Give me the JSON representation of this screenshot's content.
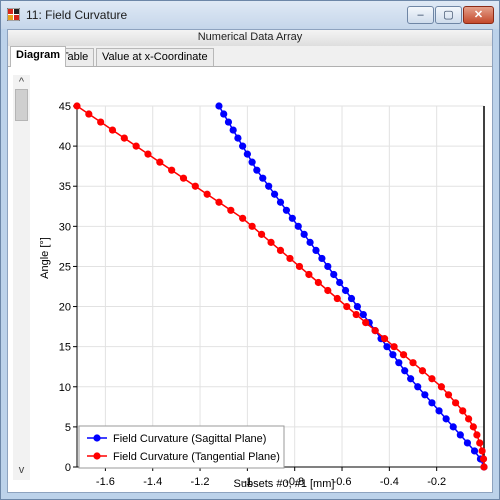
{
  "window": {
    "title": "11: Field Curvature",
    "min_glyph": "–",
    "max_glyph": "▢",
    "close_glyph": "✕"
  },
  "header": {
    "title": "Numerical Data Array"
  },
  "tabs": [
    {
      "label": "Diagram",
      "active": true
    },
    {
      "label": "Table",
      "active": false
    },
    {
      "label": "Value at x-Coordinate",
      "active": false
    }
  ],
  "scroll": {
    "up": "^",
    "down": "v"
  },
  "chart_data": {
    "type": "line",
    "xlabel": "Subsets #0, #1 [mm]",
    "ylabel": "Angle [°]",
    "xlim": [
      -1.72,
      0
    ],
    "ylim": [
      0,
      45
    ],
    "xticks": [
      -1.6,
      -1.4,
      -1.2,
      -1,
      -0.8,
      -0.6,
      -0.4,
      -0.2
    ],
    "yticks": [
      0,
      5,
      10,
      15,
      20,
      25,
      30,
      35,
      40,
      45
    ],
    "grid": true,
    "legend_position": "bottom-left",
    "series": [
      {
        "name": "Field Curvature (Sagittal Plane)",
        "color": "#0000ff",
        "points": [
          [
            -1.12,
            45
          ],
          [
            -1.1,
            44
          ],
          [
            -1.08,
            43
          ],
          [
            -1.06,
            42
          ],
          [
            -1.04,
            41
          ],
          [
            -1.02,
            40
          ],
          [
            -1.0,
            39
          ],
          [
            -0.98,
            38
          ],
          [
            -0.96,
            37
          ],
          [
            -0.935,
            36
          ],
          [
            -0.91,
            35
          ],
          [
            -0.885,
            34
          ],
          [
            -0.86,
            33
          ],
          [
            -0.835,
            32
          ],
          [
            -0.81,
            31
          ],
          [
            -0.785,
            30
          ],
          [
            -0.76,
            29
          ],
          [
            -0.735,
            28
          ],
          [
            -0.71,
            27
          ],
          [
            -0.685,
            26
          ],
          [
            -0.66,
            25
          ],
          [
            -0.635,
            24
          ],
          [
            -0.61,
            23
          ],
          [
            -0.585,
            22
          ],
          [
            -0.56,
            21
          ],
          [
            -0.535,
            20
          ],
          [
            -0.51,
            19
          ],
          [
            -0.485,
            18
          ],
          [
            -0.46,
            17
          ],
          [
            -0.435,
            16
          ],
          [
            -0.41,
            15
          ],
          [
            -0.385,
            14
          ],
          [
            -0.36,
            13
          ],
          [
            -0.335,
            12
          ],
          [
            -0.31,
            11
          ],
          [
            -0.28,
            10
          ],
          [
            -0.25,
            9
          ],
          [
            -0.22,
            8
          ],
          [
            -0.19,
            7
          ],
          [
            -0.16,
            6
          ],
          [
            -0.13,
            5
          ],
          [
            -0.1,
            4
          ],
          [
            -0.07,
            3
          ],
          [
            -0.04,
            2
          ],
          [
            -0.015,
            1
          ],
          [
            0,
            0
          ]
        ]
      },
      {
        "name": "Field Curvature (Tangential Plane)",
        "color": "#ff0000",
        "points": [
          [
            -1.72,
            45
          ],
          [
            -1.67,
            44
          ],
          [
            -1.62,
            43
          ],
          [
            -1.57,
            42
          ],
          [
            -1.52,
            41
          ],
          [
            -1.47,
            40
          ],
          [
            -1.42,
            39
          ],
          [
            -1.37,
            38
          ],
          [
            -1.32,
            37
          ],
          [
            -1.27,
            36
          ],
          [
            -1.22,
            35
          ],
          [
            -1.17,
            34
          ],
          [
            -1.12,
            33
          ],
          [
            -1.07,
            32
          ],
          [
            -1.02,
            31
          ],
          [
            -0.98,
            30
          ],
          [
            -0.94,
            29
          ],
          [
            -0.9,
            28
          ],
          [
            -0.86,
            27
          ],
          [
            -0.82,
            26
          ],
          [
            -0.78,
            25
          ],
          [
            -0.74,
            24
          ],
          [
            -0.7,
            23
          ],
          [
            -0.66,
            22
          ],
          [
            -0.62,
            21
          ],
          [
            -0.58,
            20
          ],
          [
            -0.54,
            19
          ],
          [
            -0.5,
            18
          ],
          [
            -0.46,
            17
          ],
          [
            -0.42,
            16
          ],
          [
            -0.38,
            15
          ],
          [
            -0.34,
            14
          ],
          [
            -0.3,
            13
          ],
          [
            -0.26,
            12
          ],
          [
            -0.22,
            11
          ],
          [
            -0.18,
            10
          ],
          [
            -0.15,
            9
          ],
          [
            -0.12,
            8
          ],
          [
            -0.09,
            7
          ],
          [
            -0.065,
            6
          ],
          [
            -0.045,
            5
          ],
          [
            -0.03,
            4
          ],
          [
            -0.018,
            3
          ],
          [
            -0.008,
            2
          ],
          [
            -0.002,
            1
          ],
          [
            0,
            0
          ]
        ]
      }
    ]
  }
}
